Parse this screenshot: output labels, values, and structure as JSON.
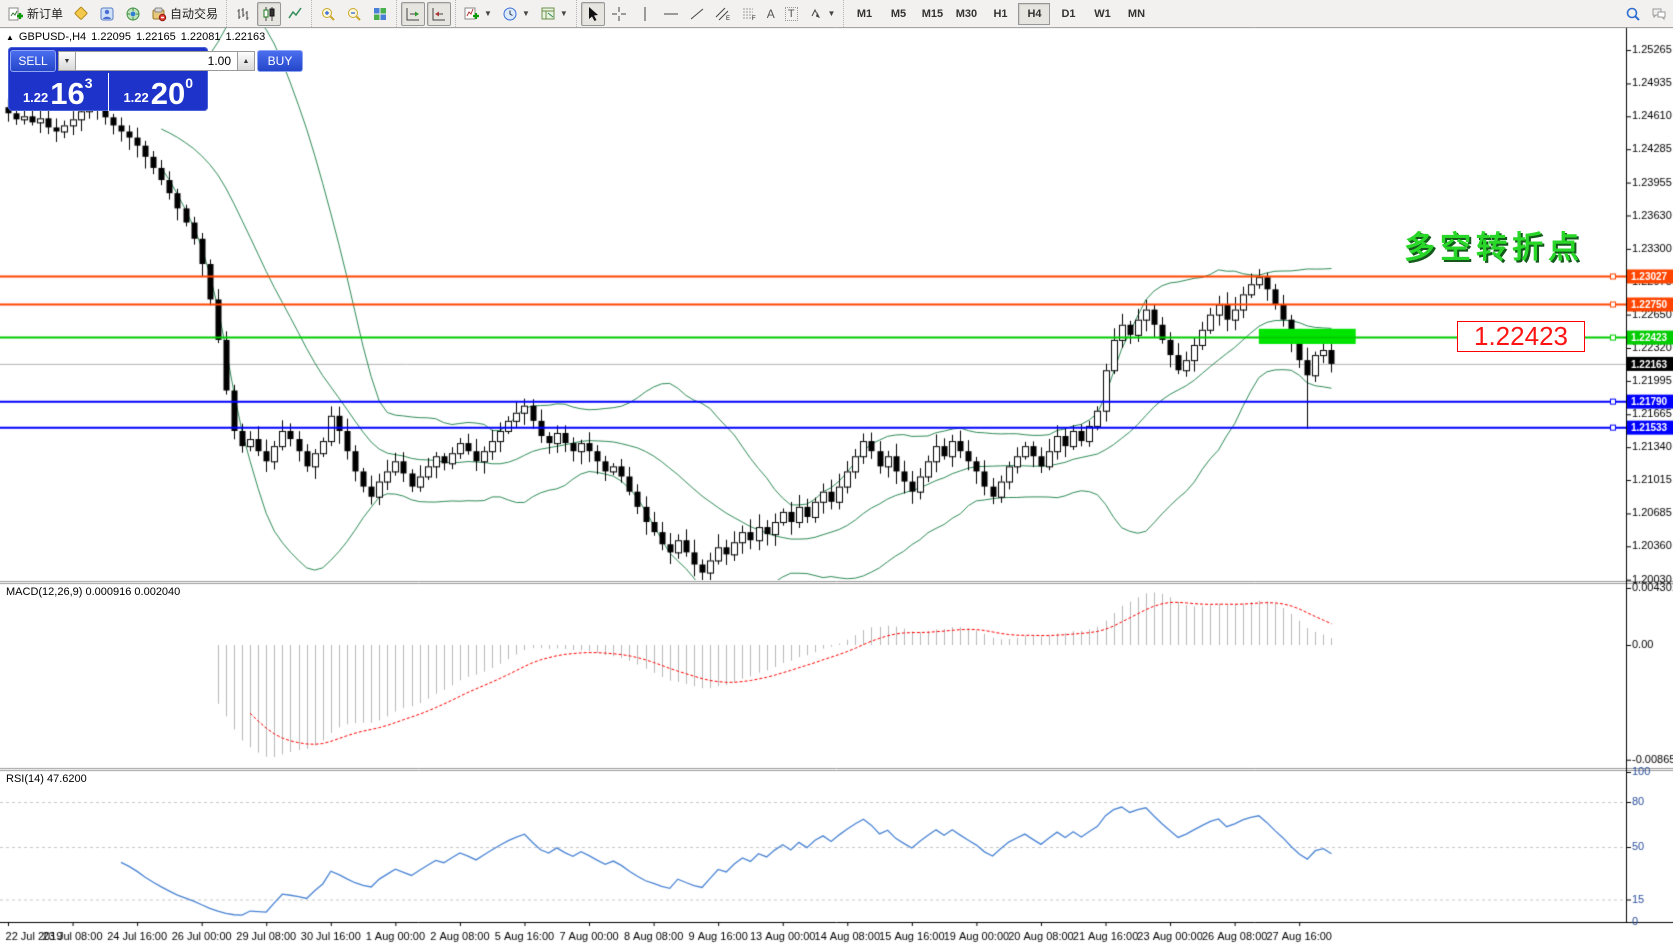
{
  "toolbar": {
    "new_order_label": "新订单",
    "autotrading_label": "自动交易",
    "timeframes": {
      "items": [
        "M1",
        "M5",
        "M15",
        "M30",
        "H1",
        "H4",
        "D1",
        "W1",
        "MN"
      ],
      "active": "H4"
    },
    "text_tool_a": "A",
    "text_tool_t": "T",
    "channel_sub": "E",
    "fibo_sub": "F"
  },
  "symbol_line": {
    "collapse": "▲",
    "symbol": "GBPUSD-,H4",
    "open": "1.22095",
    "high": "1.22165",
    "low": "1.22081",
    "close": "1.22163"
  },
  "order_panel": {
    "sell_label": "SELL",
    "buy_label": "BUY",
    "volume": "1.00",
    "sell_price_small": "1.22",
    "sell_price_big": "16",
    "sell_price_sup": "3",
    "buy_price_small": "1.22",
    "buy_price_big": "20",
    "buy_price_sup": "0"
  },
  "annotations": {
    "pivot_text": "多空转折点",
    "price_callout": "1.22423"
  },
  "indicators": {
    "macd_label": "MACD(12,26,9) 0.000916 0.002040",
    "rsi_label": "RSI(14) 47.6200"
  },
  "chart_data": {
    "type": "candlestick",
    "symbol": "GBPUSD-,H4",
    "period": "H4",
    "ohlc_current": {
      "open": 1.22095,
      "high": 1.22165,
      "low": 1.22081,
      "close": 1.22163
    },
    "main_ylim": [
      1.20027,
      1.25483
    ],
    "price_axis_ticks": [
      "1.25265",
      "1.24935",
      "1.24610",
      "1.24285",
      "1.23955",
      "1.23630",
      "1.23300",
      "1.22975",
      "1.22650",
      "1.22320",
      "1.21995",
      "1.21665",
      "1.21340",
      "1.21015",
      "1.20685",
      "1.20360",
      "1.20030"
    ],
    "x_labels": [
      "22 Jul 2019",
      "23 Jul 08:00",
      "24 Jul 16:00",
      "26 Jul 00:00",
      "29 Jul 08:00",
      "30 Jul 16:00",
      "1 Aug 00:00",
      "2 Aug 08:00",
      "5 Aug 16:00",
      "7 Aug 00:00",
      "8 Aug 08:00",
      "9 Aug 16:00",
      "13 Aug 00:00",
      "14 Aug 08:00",
      "15 Aug 16:00",
      "19 Aug 00:00",
      "20 Aug 08:00",
      "21 Aug 16:00",
      "23 Aug 00:00",
      "26 Aug 08:00",
      "27 Aug 16:00"
    ],
    "x_label_step": 8,
    "first_open": 1.247,
    "closes": [
      1.2464,
      1.2458,
      1.2461,
      1.2455,
      1.2459,
      1.245,
      1.2446,
      1.2452,
      1.2458,
      1.2466,
      1.2474,
      1.2468,
      1.246,
      1.2452,
      1.2446,
      1.244,
      1.2432,
      1.2421,
      1.241,
      1.2398,
      1.2385,
      1.237,
      1.2356,
      1.234,
      1.2315,
      1.228,
      1.224,
      1.219,
      1.215,
      1.2135,
      1.2142,
      1.213,
      1.212,
      1.2135,
      1.215,
      1.2142,
      1.213,
      1.2115,
      1.2128,
      1.214,
      1.2165,
      1.215,
      1.213,
      1.211,
      1.2095,
      1.2085,
      1.21,
      1.211,
      1.212,
      1.2108,
      1.2095,
      1.2105,
      1.2115,
      1.2125,
      1.2118,
      1.2128,
      1.2138,
      1.213,
      1.212,
      1.213,
      1.214,
      1.215,
      1.216,
      1.2168,
      1.2175,
      1.216,
      1.2145,
      1.2138,
      1.2148,
      1.2138,
      1.213,
      1.2138,
      1.213,
      1.212,
      1.211,
      1.2115,
      1.2105,
      1.209,
      1.2075,
      1.206,
      1.205,
      1.2038,
      1.203,
      1.2042,
      1.203,
      1.2018,
      1.201,
      1.2022,
      1.2035,
      1.2028,
      1.204,
      1.205,
      1.2042,
      1.2055,
      1.2048,
      1.206,
      1.207,
      1.206,
      1.2075,
      1.2065,
      1.208,
      1.209,
      1.208,
      1.2095,
      1.211,
      1.2125,
      1.214,
      1.213,
      1.2115,
      1.2125,
      1.211,
      1.21,
      1.209,
      1.2105,
      1.212,
      1.2135,
      1.2125,
      1.214,
      1.213,
      1.212,
      1.211,
      1.2095,
      1.2085,
      1.21,
      1.2115,
      1.2125,
      1.2135,
      1.2125,
      1.2115,
      1.213,
      1.2145,
      1.2135,
      1.215,
      1.214,
      1.2155,
      1.217,
      1.221,
      1.224,
      1.2255,
      1.2245,
      1.226,
      1.227,
      1.2255,
      1.224,
      1.2225,
      1.221,
      1.222,
      1.2235,
      1.225,
      1.2265,
      1.2275,
      1.226,
      1.227,
      1.2285,
      1.2295,
      1.2302,
      1.229,
      1.2275,
      1.226,
      1.224,
      1.222,
      1.2205,
      1.2225,
      1.223,
      1.22163
    ],
    "high_overrides": {
      "10": 1.2478,
      "155": 1.231
    },
    "low_overrides": {
      "86": 1.2002,
      "161": 1.2152
    },
    "bollinger": {
      "period": 20,
      "deviation": 2
    },
    "macd": {
      "params": [
        12,
        26,
        9
      ],
      "values_label": [
        "0.000916",
        "0.002040"
      ],
      "axis_labels": [
        "0.004301",
        "0.00",
        "-0.008651"
      ],
      "axis_values": [
        0.004301,
        0,
        -0.008651
      ],
      "ylim": [
        -0.0092,
        0.0046
      ]
    },
    "rsi": {
      "period": 14,
      "current": 47.62,
      "levels": [
        80,
        50,
        15
      ],
      "axis_labels": [
        "100",
        "80",
        "50",
        "15",
        "0"
      ],
      "axis_values": [
        100,
        80,
        50,
        15,
        0
      ]
    },
    "hlines": [
      {
        "price": 1.23027,
        "color": "#FF4500",
        "width": 2,
        "tag": "1.23027"
      },
      {
        "price": 1.2275,
        "color": "#FF4500",
        "width": 2,
        "tag": "1.22750"
      },
      {
        "price": 1.22423,
        "color": "#00CC00",
        "width": 2,
        "tag": "1.22423"
      },
      {
        "price": 1.2179,
        "color": "#0000FF",
        "width": 2,
        "tag": "1.21790"
      },
      {
        "price": 1.21533,
        "color": "#0000FF",
        "width": 2,
        "tag": "1.21533"
      }
    ],
    "bid_line": {
      "price": 1.22163,
      "color": "#B4B4B4",
      "tag": "1.22163",
      "tag_color": "#000000"
    },
    "highlight_rect": {
      "start_bar": 155,
      "end_bar": 167,
      "price_top": 1.2251,
      "price_bottom": 1.2236,
      "color": "#00E400"
    },
    "colors": {
      "bull": "#FFFFFF",
      "bear": "#000000",
      "wick": "#000000",
      "bollinger": "#2E8B57",
      "macd_hist": "#B9B9B9",
      "macd_signal": "#FF0000",
      "rsi_line": "#4A84D4",
      "level_dash": "#C8C8C8",
      "axis_text": "#000000",
      "rsi_axis_text": "#2C4F9C"
    }
  }
}
